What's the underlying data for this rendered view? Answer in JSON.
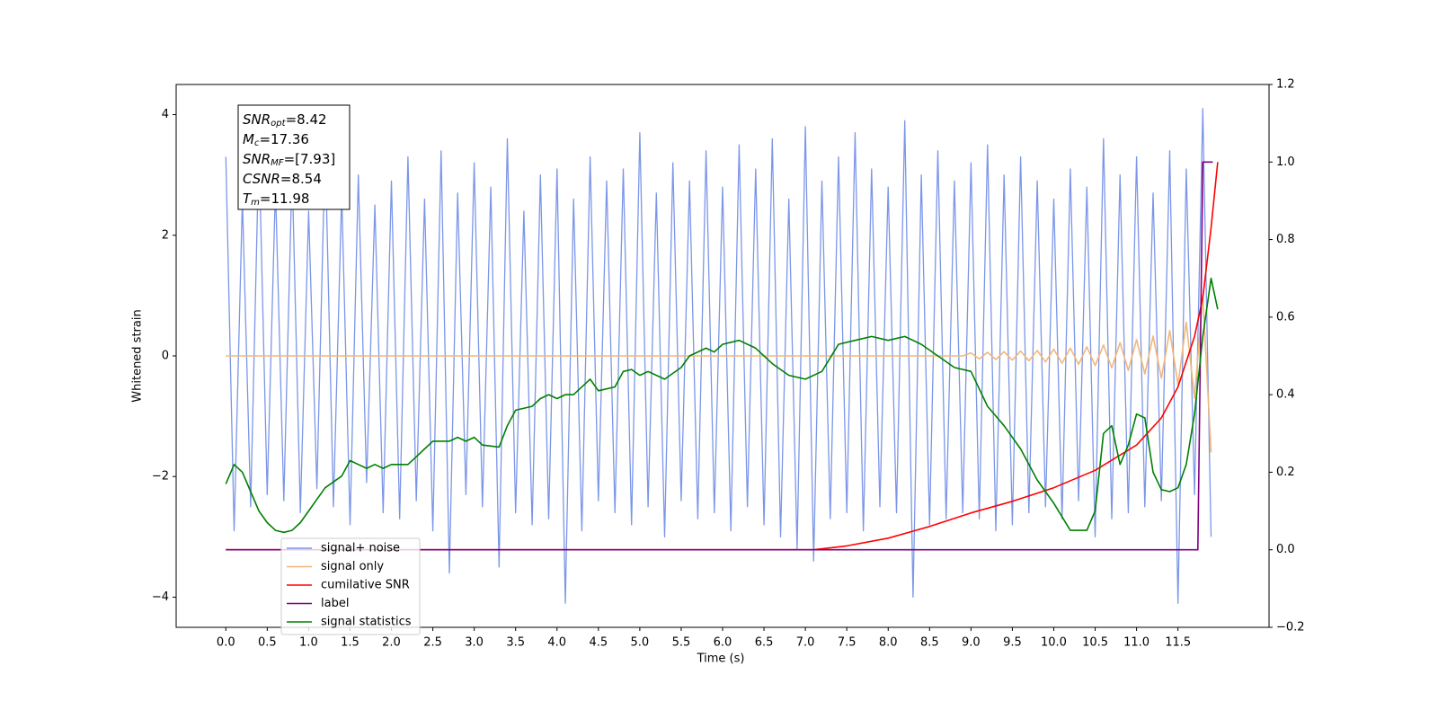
{
  "chart_data": {
    "type": "line",
    "xlabel": "Time (s)",
    "ylabel": "Whitened strain",
    "xlim": [
      -0.6,
      12.6
    ],
    "ylim": [
      -4.5,
      4.5
    ],
    "y2lim": [
      -0.2,
      1.2
    ],
    "xticks": [
      {
        "value": 0,
        "label": "0.0"
      },
      0.5,
      {
        "value": 1,
        "label": "1.0"
      },
      1.5,
      {
        "value": 2,
        "label": "2.0"
      },
      2.5,
      {
        "value": 3,
        "label": "3.0"
      },
      3.5,
      {
        "value": 4,
        "label": "4.0"
      },
      4.5,
      {
        "value": 5,
        "label": "5.0"
      },
      5.5,
      {
        "value": 6,
        "label": "6.0"
      },
      6.5,
      {
        "value": 7,
        "label": "7.0"
      },
      7.5,
      {
        "value": 8,
        "label": "8.0"
      },
      8.5,
      {
        "value": 9,
        "label": "9.0"
      },
      9.5,
      {
        "value": 10,
        "label": "10.0"
      },
      10.5,
      {
        "value": 11,
        "label": "11.0"
      },
      11.5
    ],
    "yticks": [
      {
        "value": -4,
        "label": "−4"
      },
      {
        "value": -2,
        "label": "−2"
      },
      0,
      2,
      4
    ],
    "y2ticks": [
      {
        "value": -0.2,
        "label": "−0.2"
      },
      {
        "value": 0,
        "label": "0.0"
      },
      0.2,
      0.4,
      0.6,
      0.8,
      {
        "value": 1,
        "label": "1.0"
      },
      1.2
    ],
    "grid": false,
    "legend": "lower left",
    "annotation": [
      {
        "text": "SNR",
        "sub": "opt",
        "rest": "=8.42"
      },
      {
        "text": "M",
        "sub": "c",
        "rest": "=17.36"
      },
      {
        "text": "SNR",
        "sub": "MF",
        "rest": "=[7.93]"
      },
      {
        "text": "CSNR",
        "sub": "",
        "rest": "=8.54"
      },
      {
        "text": "T",
        "sub": "m",
        "rest": "=11.98"
      }
    ],
    "series": [
      {
        "name": "signal+ noise",
        "color": "#7b96e8",
        "x": [
          0,
          0.1,
          0.2,
          0.3,
          0.4,
          0.5,
          0.6,
          0.7,
          0.8,
          0.9,
          1,
          1.1,
          1.2,
          1.3,
          1.4,
          1.5,
          1.6,
          1.7,
          1.8,
          1.9,
          2,
          2.1,
          2.2,
          2.3,
          2.4,
          2.5,
          2.6,
          2.7,
          2.8,
          2.9,
          3,
          3.1,
          3.2,
          3.3,
          3.4,
          3.5,
          3.6,
          3.7,
          3.8,
          3.9,
          4,
          4.1,
          4.2,
          4.3,
          4.4,
          4.5,
          4.6,
          4.7,
          4.8,
          4.9,
          5,
          5.1,
          5.2,
          5.3,
          5.4,
          5.5,
          5.6,
          5.7,
          5.8,
          5.9,
          6,
          6.1,
          6.2,
          6.3,
          6.4,
          6.5,
          6.6,
          6.7,
          6.8,
          6.9,
          7,
          7.1,
          7.2,
          7.3,
          7.4,
          7.5,
          7.6,
          7.7,
          7.8,
          7.9,
          8,
          8.1,
          8.2,
          8.3,
          8.4,
          8.5,
          8.6,
          8.7,
          8.8,
          8.9,
          9,
          9.1,
          9.2,
          9.3,
          9.4,
          9.5,
          9.6,
          9.7,
          9.8,
          9.9,
          10,
          10.1,
          10.2,
          10.3,
          10.4,
          10.5,
          10.6,
          10.7,
          10.8,
          10.9,
          11,
          11.1,
          11.2,
          11.3,
          11.4,
          11.5,
          11.6,
          11.7,
          11.8,
          11.9
        ],
        "values": [
          3.3,
          -2.9,
          2.6,
          -2.5,
          3.5,
          -2.3,
          2.8,
          -2.4,
          3.1,
          -2.6,
          2.4,
          -2.2,
          3.5,
          -2.5,
          2.7,
          -2.8,
          3.0,
          -2.1,
          2.5,
          -2.6,
          2.9,
          -2.7,
          3.3,
          -2.4,
          2.6,
          -2.9,
          3.4,
          -3.6,
          2.7,
          -2.3,
          3.2,
          -2.5,
          2.8,
          -3.5,
          3.6,
          -2.6,
          2.4,
          -2.8,
          3.0,
          -2.7,
          3.1,
          -4.1,
          2.6,
          -2.9,
          3.3,
          -2.4,
          2.9,
          -2.6,
          3.1,
          -2.8,
          3.7,
          -2.5,
          2.7,
          -3.0,
          3.2,
          -2.4,
          2.9,
          -2.7,
          3.4,
          -2.6,
          2.8,
          -2.9,
          3.5,
          -2.5,
          3.1,
          -2.8,
          3.6,
          -3.0,
          2.6,
          -3.2,
          3.8,
          -3.4,
          2.9,
          -2.7,
          3.3,
          -2.6,
          3.7,
          -2.9,
          3.1,
          -2.5,
          2.8,
          -2.6,
          3.9,
          -4.0,
          3.0,
          -2.8,
          3.4,
          -2.7,
          2.9,
          -2.6,
          3.2,
          -2.7,
          3.5,
          -2.9,
          3.0,
          -2.8,
          3.3,
          -2.6,
          2.9,
          -2.5,
          2.6,
          -2.7,
          3.1,
          -2.4,
          2.8,
          -3.0,
          3.6,
          -2.7,
          3.0,
          -2.6,
          3.3,
          -2.5,
          2.7,
          -2.4,
          3.4,
          -4.1,
          3.1,
          -2.3,
          4.1,
          -3.0
        ]
      },
      {
        "name": "signal only",
        "color": "#f2b77a",
        "x": [
          0,
          8.9,
          9,
          9.1,
          9.2,
          9.3,
          9.4,
          9.5,
          9.6,
          9.7,
          9.8,
          9.9,
          10,
          10.1,
          10.2,
          10.3,
          10.4,
          10.5,
          10.6,
          10.7,
          10.8,
          10.9,
          11,
          11.1,
          11.2,
          11.3,
          11.4,
          11.5,
          11.6,
          11.7,
          11.8,
          11.9
        ],
        "values": [
          0,
          0,
          0.05,
          -0.05,
          0.06,
          -0.06,
          0.07,
          -0.07,
          0.08,
          -0.08,
          0.09,
          -0.1,
          0.11,
          -0.12,
          0.13,
          -0.14,
          0.15,
          -0.16,
          0.18,
          -0.2,
          0.22,
          -0.24,
          0.27,
          -0.3,
          0.33,
          -0.37,
          0.42,
          -0.48,
          0.56,
          -0.7,
          1.0,
          -1.6
        ]
      },
      {
        "name": "cumilative SNR",
        "color": "#ff0000",
        "axis": "y2",
        "x": [
          0,
          7.1,
          7.5,
          8,
          8.5,
          9,
          9.5,
          10,
          10.5,
          11,
          11.3,
          11.5,
          11.7,
          11.8,
          11.9,
          11.98
        ],
        "values": [
          0,
          0,
          0.01,
          0.03,
          0.06,
          0.095,
          0.125,
          0.16,
          0.205,
          0.27,
          0.34,
          0.42,
          0.55,
          0.65,
          0.83,
          1.0
        ]
      },
      {
        "name": "label",
        "color": "#800080",
        "axis": "y2",
        "x": [
          0,
          11.74,
          11.8,
          11.92
        ],
        "values": [
          0,
          0,
          1,
          1
        ]
      },
      {
        "name": "signal statistics",
        "color": "#008000",
        "axis": "y2",
        "x": [
          0,
          0.1,
          0.2,
          0.3,
          0.4,
          0.5,
          0.6,
          0.7,
          0.8,
          0.9,
          1,
          1.1,
          1.2,
          1.4,
          1.5,
          1.6,
          1.7,
          1.8,
          1.9,
          2,
          2.2,
          2.3,
          2.4,
          2.5,
          2.6,
          2.7,
          2.8,
          2.9,
          3,
          3.1,
          3.3,
          3.4,
          3.5,
          3.7,
          3.8,
          3.9,
          4,
          4.1,
          4.2,
          4.4,
          4.5,
          4.7,
          4.8,
          4.9,
          5,
          5.1,
          5.3,
          5.5,
          5.6,
          5.8,
          5.9,
          6,
          6.2,
          6.4,
          6.6,
          6.8,
          7,
          7.2,
          7.4,
          7.6,
          7.8,
          8,
          8.2,
          8.4,
          8.6,
          8.8,
          9,
          9.2,
          9.4,
          9.6,
          9.8,
          10,
          10.2,
          10.4,
          10.5,
          10.6,
          10.7,
          10.8,
          10.9,
          11,
          11.1,
          11.2,
          11.3,
          11.4,
          11.5,
          11.6,
          11.7,
          11.8,
          11.9,
          11.98
        ],
        "values": [
          0.17,
          0.22,
          0.2,
          0.15,
          0.1,
          0.07,
          0.05,
          0.045,
          0.05,
          0.07,
          0.1,
          0.13,
          0.16,
          0.19,
          0.23,
          0.22,
          0.21,
          0.22,
          0.21,
          0.22,
          0.22,
          0.24,
          0.26,
          0.28,
          0.28,
          0.28,
          0.29,
          0.28,
          0.29,
          0.27,
          0.265,
          0.32,
          0.36,
          0.37,
          0.39,
          0.4,
          0.39,
          0.4,
          0.4,
          0.44,
          0.41,
          0.42,
          0.46,
          0.465,
          0.45,
          0.46,
          0.44,
          0.47,
          0.5,
          0.52,
          0.51,
          0.53,
          0.54,
          0.52,
          0.48,
          0.45,
          0.44,
          0.46,
          0.53,
          0.54,
          0.55,
          0.54,
          0.55,
          0.53,
          0.5,
          0.47,
          0.46,
          0.37,
          0.32,
          0.26,
          0.18,
          0.12,
          0.05,
          0.05,
          0.1,
          0.3,
          0.32,
          0.22,
          0.27,
          0.35,
          0.34,
          0.2,
          0.155,
          0.15,
          0.16,
          0.22,
          0.35,
          0.55,
          0.7,
          0.62
        ]
      }
    ]
  }
}
